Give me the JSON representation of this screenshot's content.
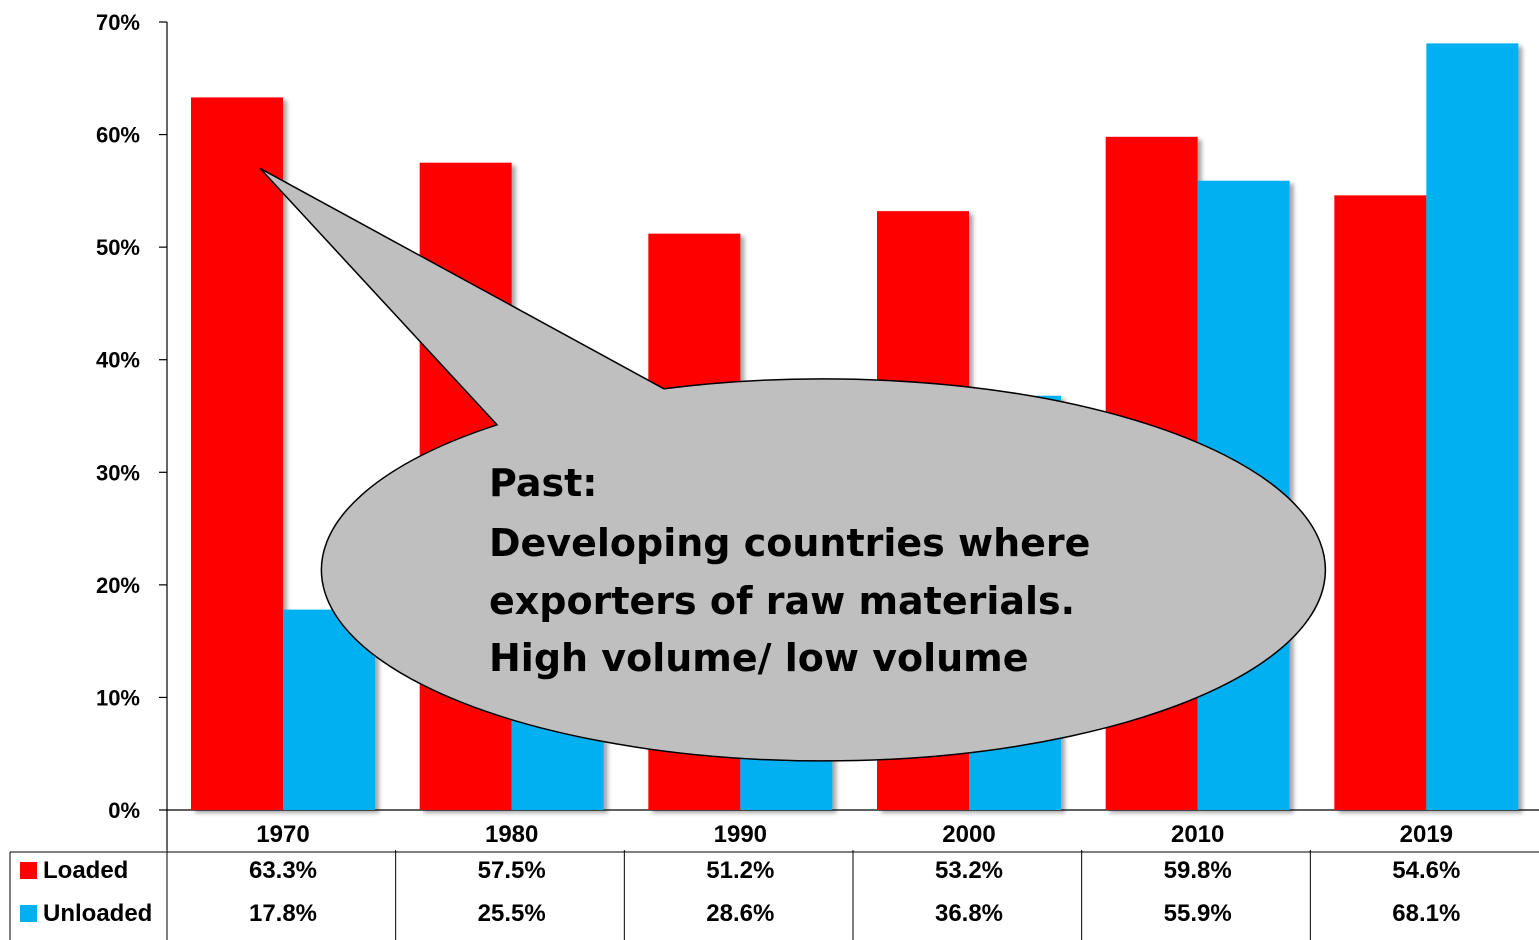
{
  "chart_data": {
    "type": "bar",
    "title": "",
    "xlabel": "",
    "ylabel": "",
    "ylim": [
      0,
      70
    ],
    "yticks": [
      "0%",
      "10%",
      "20%",
      "30%",
      "40%",
      "50%",
      "60%",
      "70%"
    ],
    "ytick_values": [
      0,
      10,
      20,
      30,
      40,
      50,
      60,
      70
    ],
    "categories": [
      "1970",
      "1980",
      "1990",
      "2000",
      "2010",
      "2019"
    ],
    "grid": false,
    "legend": "data-table-left",
    "series": [
      {
        "name": "Loaded",
        "color": "#ff0000",
        "values": [
          63.3,
          57.5,
          51.2,
          53.2,
          59.8,
          54.6
        ],
        "labels": [
          "63.3%",
          "57.5%",
          "51.2%",
          "53.2%",
          "59.8%",
          "54.6%"
        ]
      },
      {
        "name": "Unloaded",
        "color": "#00b0f0",
        "values": [
          17.8,
          25.5,
          28.6,
          36.8,
          55.9,
          68.1
        ],
        "labels": [
          "17.8%",
          "25.5%",
          "28.6%",
          "36.8%",
          "55.9%",
          "68.1%"
        ]
      }
    ],
    "annotation": {
      "lines": [
        "Past:",
        "Developing countries where",
        "exporters of raw materials.",
        "High volume/ low volume"
      ],
      "fill": "#bfbfbf",
      "points_to": {
        "category": "1970",
        "value": 57
      }
    }
  }
}
